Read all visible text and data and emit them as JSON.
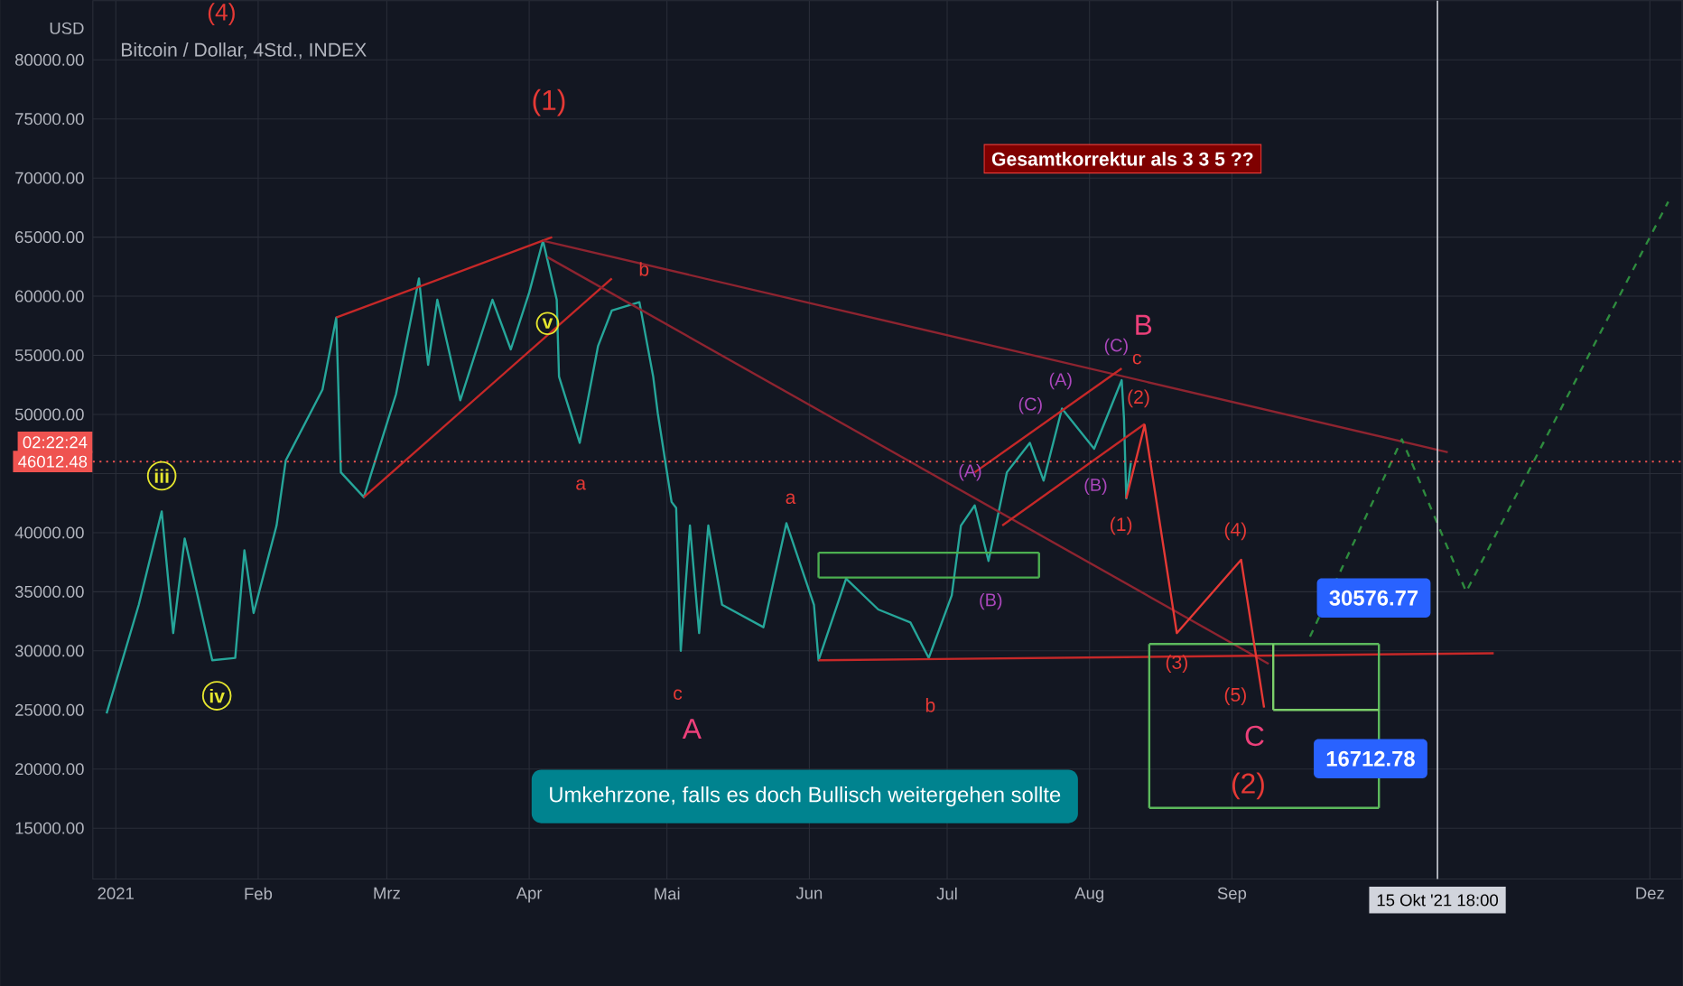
{
  "chart_data": {
    "type": "line",
    "title": "Bitcoin / Dollar, 4Std., INDEX",
    "ylabel": "USD",
    "xlim": [
      "2020-12-27",
      "2021-12-08"
    ],
    "ylim": [
      10700,
      85000
    ],
    "xticks": [
      {
        "value": "2021-01-01",
        "label": "2021"
      },
      {
        "value": "2021-02-01",
        "label": "Feb"
      },
      {
        "value": "2021-03-01",
        "label": "Mrz"
      },
      {
        "value": "2021-04-01",
        "label": "Apr"
      },
      {
        "value": "2021-05-01",
        "label": "Mai"
      },
      {
        "value": "2021-06-01",
        "label": "Jun"
      },
      {
        "value": "2021-07-01",
        "label": "Jul"
      },
      {
        "value": "2021-08-01",
        "label": "Aug"
      },
      {
        "value": "2021-09-01",
        "label": "Sep"
      },
      {
        "value": "2021-12-01",
        "label": "Dez"
      }
    ],
    "yticks": [
      {
        "value": 15000,
        "label": "15000.00"
      },
      {
        "value": 20000,
        "label": "20000.00"
      },
      {
        "value": 25000,
        "label": "25000.00"
      },
      {
        "value": 30000,
        "label": "30000.00"
      },
      {
        "value": 35000,
        "label": "35000.00"
      },
      {
        "value": 40000,
        "label": "40000.00"
      },
      {
        "value": 45000,
        "label": null
      },
      {
        "value": 50000,
        "label": "50000.00"
      },
      {
        "value": 55000,
        "label": "55000.00"
      },
      {
        "value": 60000,
        "label": "60000.00"
      },
      {
        "value": 65000,
        "label": "65000.00"
      },
      {
        "value": 70000,
        "label": "70000.00"
      },
      {
        "value": 75000,
        "label": "75000.00"
      },
      {
        "value": 80000,
        "label": "80000.00"
      }
    ],
    "grid": true,
    "marker": "none",
    "series": [
      {
        "color": "#26a69a",
        "x": [
          "2020-12-30",
          "2021-01-06",
          "2021-01-11",
          "2021-01-13T12:00",
          "2021-01-16",
          "2021-01-22",
          "2021-01-27",
          "2021-01-29",
          "2021-01-31",
          "2021-02-05",
          "2021-02-07",
          "2021-02-15",
          "2021-02-18",
          "2021-02-19",
          "2021-02-24",
          "2021-03-03",
          "2021-03-08",
          "2021-03-10",
          "2021-03-12",
          "2021-03-17",
          "2021-03-24",
          "2021-03-28",
          "2021-04-01",
          "2021-04-04",
          "2021-04-07",
          "2021-04-07T12:00",
          "2021-04-12",
          "2021-04-16",
          "2021-04-19",
          "2021-04-25",
          "2021-04-28",
          "2021-04-29",
          "2021-05-02",
          "2021-05-03",
          "2021-05-04",
          "2021-05-06",
          "2021-05-08",
          "2021-05-10",
          "2021-05-13",
          "2021-05-22",
          "2021-05-27",
          "2021-06-02",
          "2021-06-03",
          "2021-06-09",
          "2021-06-16",
          "2021-06-23",
          "2021-06-27",
          "2021-07-02",
          "2021-07-04",
          "2021-07-07",
          "2021-07-10",
          "2021-07-14",
          "2021-07-19",
          "2021-07-22",
          "2021-07-26",
          "2021-08-02",
          "2021-08-08",
          "2021-08-08T12:00",
          "2021-08-09",
          "2021-08-10"
        ],
        "values": [
          24700,
          33900,
          41800,
          31500,
          39500,
          29200,
          29400,
          38500,
          33200,
          40600,
          46100,
          52100,
          58200,
          45100,
          43000,
          51700,
          61500,
          54200,
          59700,
          51200,
          59700,
          55500,
          60300,
          64700,
          59700,
          53200,
          47600,
          55800,
          58800,
          59500,
          53200,
          50100,
          42600,
          42100,
          30000,
          40600,
          31500,
          40600,
          33900,
          32000,
          40800,
          33900,
          29200,
          36100,
          33500,
          32400,
          29400,
          34700,
          40600,
          42300,
          37600,
          45100,
          47600,
          44400,
          50500,
          47100,
          52900,
          49700,
          42900,
          45900
        ]
      },
      {
        "color": "#c62828",
        "x": [
          "2021-02-18",
          "2021-04-06"
        ],
        "values": [
          58200,
          65000
        ]
      },
      {
        "color": "#c62828",
        "x": [
          "2021-02-24",
          "2021-04-19"
        ],
        "values": [
          43000,
          61500
        ]
      },
      {
        "color": "#8e2430",
        "x": [
          "2021-04-04",
          "2021-10-18"
        ],
        "values": [
          64700,
          46800
        ]
      },
      {
        "color": "#8e2430",
        "x": [
          "2021-04-05",
          "2021-09-09"
        ],
        "values": [
          63300,
          28900
        ]
      },
      {
        "color": "#c62828",
        "x": [
          "2021-06-03",
          "2021-10-28"
        ],
        "values": [
          29200,
          29800
        ]
      },
      {
        "color": "#c62828",
        "x": [
          "2021-07-07",
          "2021-08-08"
        ],
        "values": [
          45100,
          53900
        ]
      },
      {
        "color": "#c62828",
        "x": [
          "2021-07-13",
          "2021-08-13"
        ],
        "values": [
          40600,
          49200
        ]
      },
      {
        "color": "#4caf50",
        "x": [
          "2021-06-03",
          "2021-07-21"
        ],
        "values": [
          38300,
          38300
        ]
      },
      {
        "color": "#4caf50",
        "x": [
          "2021-06-03",
          "2021-07-21"
        ],
        "values": [
          36200,
          36200
        ]
      },
      {
        "color": "#4caf50",
        "x": [
          "2021-06-03",
          "2021-06-03"
        ],
        "values": [
          38300,
          36200
        ]
      },
      {
        "color": "#4caf50",
        "x": [
          "2021-07-21",
          "2021-07-21"
        ],
        "values": [
          38300,
          36200
        ]
      },
      {
        "color": "#5cb85c",
        "x": [
          "2021-08-14",
          "2021-10-03"
        ],
        "values": [
          30576.77,
          30576.77
        ]
      },
      {
        "color": "#5cb85c",
        "x": [
          "2021-08-14",
          "2021-10-03"
        ],
        "values": [
          16712.78,
          16712.78
        ]
      },
      {
        "color": "#5cb85c",
        "x": [
          "2021-08-14",
          "2021-08-14"
        ],
        "values": [
          30576.77,
          16712.78
        ]
      },
      {
        "color": "#5cb85c",
        "x": [
          "2021-10-03",
          "2021-10-03"
        ],
        "values": [
          30576.77,
          16712.78
        ]
      },
      {
        "color": "#7ccf6a",
        "x": [
          "2021-09-10",
          "2021-10-03"
        ],
        "values": [
          25000,
          25000
        ]
      },
      {
        "color": "#7ccf6a",
        "x": [
          "2021-09-10",
          "2021-09-10"
        ],
        "values": [
          30576.77,
          25000
        ]
      },
      {
        "color": "#e53935",
        "x": [
          "2021-08-09",
          "2021-08-13",
          "2021-08-20",
          "2021-09-03",
          "2021-09-08"
        ],
        "values": [
          42900,
          49100,
          31500,
          37700,
          25200
        ]
      },
      {
        "color": "#2e8b3e",
        "line_style": "dashed",
        "x": [
          "2021-09-18",
          "2021-10-08",
          "2021-10-22",
          "2021-12-05"
        ],
        "values": [
          31200,
          47900,
          35000,
          68000
        ]
      }
    ],
    "ref_lines": [
      {
        "axis": "y",
        "value": 46012.48,
        "label": "46012.48",
        "color": "#ef5350",
        "line_style": "dotted"
      },
      {
        "axis": "x",
        "value": "2021-10-15T18:00",
        "label": "15 Okt '21 18:00",
        "color": "#d1d4dc",
        "line_style": "solid"
      }
    ],
    "annotations": [
      "(4)",
      "(1)",
      {
        "text": "v",
        "x": "2021-04-05",
        "y": 57700
      },
      {
        "text": "iii",
        "x": "2021-01-11",
        "y": 44800
      },
      {
        "text": "iv",
        "x": "2021-01-23",
        "y": 26200
      },
      "a",
      {
        "text": "b",
        "x": "2021-04-26",
        "y": 62300
      },
      "a",
      "c",
      "A",
      "b",
      {
        "text": "(A)",
        "x": "2021-07-06",
        "y": 45100
      },
      "(B)",
      "(C)",
      "(A)",
      "(B)",
      "(C)",
      "B",
      "c",
      "(2)",
      "(1)",
      {
        "text": "(3)",
        "x": "2021-08-20",
        "y": 28900
      },
      "(4)",
      "(5)",
      "C",
      "(2)",
      "Gesamtkorrektur als 3 3 5  ??",
      "Umkehrzone, falls es doch Bullisch weitergehen sollte",
      "30576.77",
      "16712.78",
      "02:22:24"
    ]
  }
}
